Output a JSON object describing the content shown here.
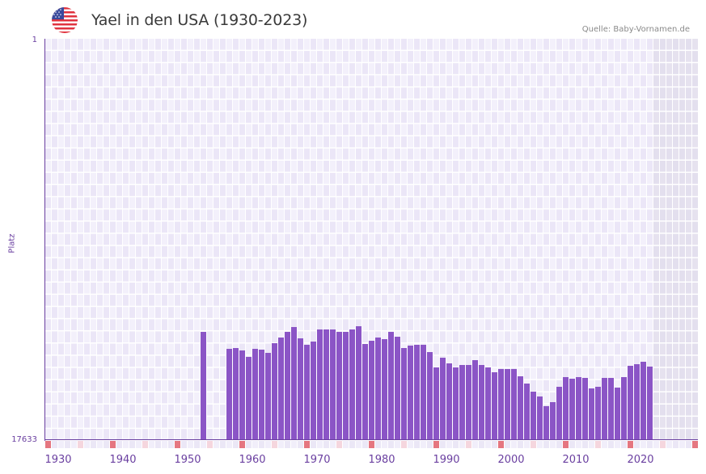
{
  "header": {
    "title": "Yael in den USA (1930-2023)",
    "source": "Quelle: Baby-Vornamen.de",
    "flag_icon": "us-flag-icon"
  },
  "colors": {
    "bar": "#8b55c6",
    "axis": "#6a3fa0",
    "grid_light": "#f3f0fb",
    "grid_dark": "#ebe6f7",
    "future_shade": "#e3dfee",
    "decade_marker": "#e57680",
    "half_decade_marker": "#f5d6de"
  },
  "axes": {
    "y_label": "Platz",
    "y_top_tick": "1",
    "y_bottom_tick": "17633",
    "x_ticks": [
      "1930",
      "1940",
      "1950",
      "1960",
      "1970",
      "1980",
      "1990",
      "2000",
      "2010",
      "2020"
    ]
  },
  "chart_data": {
    "type": "bar",
    "title": "Yael in den USA (1930-2023)",
    "xlabel": "",
    "ylabel": "Platz",
    "ylim": [
      17633,
      1
    ],
    "y_inverted": true,
    "x_range": [
      1930,
      2030
    ],
    "future_shaded_from": 2024,
    "grid": true,
    "legend": null,
    "source": "Quelle: Baby-Vornamen.de",
    "categories": [
      1954,
      1958,
      1959,
      1960,
      1961,
      1962,
      1963,
      1964,
      1965,
      1966,
      1967,
      1968,
      1969,
      1970,
      1971,
      1972,
      1973,
      1974,
      1975,
      1976,
      1977,
      1978,
      1979,
      1980,
      1981,
      1982,
      1983,
      1984,
      1985,
      1986,
      1987,
      1988,
      1989,
      1990,
      1991,
      1992,
      1993,
      1994,
      1995,
      1996,
      1997,
      1998,
      1999,
      2000,
      2001,
      2002,
      2003,
      2004,
      2005,
      2006,
      2007,
      2008,
      2009,
      2010,
      2011,
      2012,
      2013,
      2014,
      2015,
      2016,
      2017,
      2018,
      2019,
      2020,
      2021,
      2022,
      2023
    ],
    "values": [
      12885,
      13635,
      13599,
      13706,
      13991,
      13635,
      13670,
      13813,
      13385,
      13135,
      12885,
      12671,
      13171,
      13456,
      13314,
      12778,
      12778,
      12778,
      12885,
      12885,
      12778,
      12636,
      13421,
      13278,
      13135,
      13207,
      12885,
      13099,
      13599,
      13492,
      13456,
      13456,
      13778,
      14456,
      14028,
      14277,
      14456,
      14349,
      14349,
      14135,
      14349,
      14456,
      14634,
      14527,
      14492,
      14492,
      14813,
      15134,
      15491,
      15705,
      16133,
      15955,
      15277,
      14849,
      14920,
      14849,
      14884,
      15348,
      15277,
      14884,
      14884,
      15312,
      14849,
      14385,
      14314,
      14206,
      14420
    ]
  }
}
